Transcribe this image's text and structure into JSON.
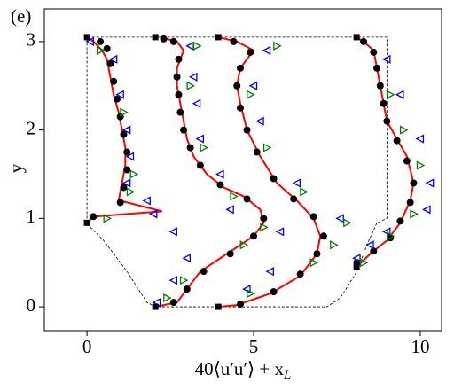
{
  "chart_data": {
    "type": "line",
    "panel_label": "(e)",
    "xlabel": "40⟨u′u′⟩ + x",
    "xlabel_sub": "L",
    "ylabel": "y",
    "xlim": [
      -1.28,
      10.64
    ],
    "ylim": [
      -0.27,
      3.37
    ],
    "xticks": [
      0,
      5,
      10
    ],
    "yticks": [
      0,
      1,
      2,
      3
    ],
    "series": [
      {
        "style": "line",
        "color": "#000000",
        "dashed": true,
        "x": [
          0,
          0,
          9.0,
          9.0,
          8.7,
          8.4,
          8.1,
          7.6,
          7.2,
          2.05,
          1.8,
          1.2,
          0.5,
          0.1,
          0
        ],
        "y": [
          0.95,
          3.05,
          3.05,
          1.0,
          0.95,
          0.7,
          0.4,
          0.1,
          0,
          0,
          0.05,
          0.4,
          0.75,
          0.9,
          0.95
        ]
      },
      {
        "style": "line",
        "color": "#ff0000",
        "x": [
          0,
          0.19,
          2.25,
          1.0,
          0.95,
          1.05,
          1.15,
          1.15,
          1.05,
          0.95,
          0.8,
          0.7,
          0.6,
          0.45,
          0.2,
          0,
          null,
          2.05,
          2.7,
          3.0,
          3.4,
          4.2,
          5.0,
          5.3,
          5.2,
          4.7,
          4.1,
          3.6,
          3.2,
          3.0,
          2.9,
          2.8,
          2.7,
          2.7,
          2.9,
          2.7,
          2.2,
          null,
          3.94,
          4.5,
          5.5,
          6.4,
          6.9,
          7.0,
          6.8,
          6.3,
          5.7,
          5.2,
          4.8,
          4.6,
          4.5,
          4.6,
          5.0,
          4.5,
          3.94,
          null,
          8.09,
          8.5,
          9.0,
          9.4,
          9.7,
          9.8,
          9.6,
          9.3,
          9.0,
          8.9,
          8.8,
          8.7,
          8.6,
          8.3,
          8.09
        ],
        "y": [
          0.95,
          1.02,
          1.08,
          1.2,
          1.2,
          1.4,
          1.6,
          1.8,
          2.0,
          2.2,
          2.4,
          2.6,
          2.8,
          2.9,
          3.0,
          3.05,
          null,
          0,
          0.05,
          0.2,
          0.4,
          0.6,
          0.8,
          0.95,
          1.1,
          1.25,
          1.35,
          1.5,
          1.7,
          1.9,
          2.1,
          2.3,
          2.5,
          2.7,
          2.9,
          3.0,
          3.05,
          null,
          0,
          0.02,
          0.15,
          0.35,
          0.6,
          0.8,
          1.0,
          1.2,
          1.4,
          1.7,
          2.0,
          2.3,
          2.5,
          2.7,
          2.9,
          3.0,
          3.05,
          null,
          0.45,
          0.6,
          0.75,
          0.95,
          1.2,
          1.4,
          1.7,
          1.9,
          2.1,
          2.3,
          2.5,
          2.7,
          2.9,
          3.0,
          3.05
        ]
      },
      {
        "style": "scatter",
        "marker": "circle",
        "color": "#000000",
        "x": [
          0.19,
          1.0,
          1.1,
          1.2,
          1.2,
          1.1,
          1.0,
          0.9,
          0.8,
          0.7,
          0.6,
          0.4,
          2.6,
          3.0,
          3.5,
          4.3,
          5.0,
          5.3,
          4.8,
          4.0,
          3.4,
          3.1,
          2.9,
          2.8,
          2.75,
          2.7,
          2.75,
          2.6,
          2.3,
          4.6,
          5.6,
          6.4,
          6.9,
          7.1,
          6.8,
          6.2,
          5.6,
          5.1,
          4.8,
          4.6,
          4.5,
          4.6,
          4.9,
          4.4,
          8.1,
          8.6,
          9.1,
          9.4,
          9.7,
          9.8,
          9.6,
          9.3,
          9.0,
          8.9,
          8.8,
          8.7,
          8.6,
          8.3
        ],
        "y": [
          1.02,
          1.18,
          1.35,
          1.55,
          1.75,
          1.95,
          2.15,
          2.35,
          2.55,
          2.75,
          2.92,
          3.0,
          0.05,
          0.2,
          0.4,
          0.6,
          0.8,
          1.0,
          1.22,
          1.38,
          1.6,
          1.8,
          2.0,
          2.2,
          2.4,
          2.6,
          2.8,
          3.0,
          3.03,
          0.03,
          0.17,
          0.37,
          0.6,
          0.8,
          1.02,
          1.22,
          1.45,
          1.75,
          2.0,
          2.25,
          2.5,
          2.7,
          2.88,
          3.0,
          0.5,
          0.63,
          0.78,
          0.97,
          1.18,
          1.4,
          1.65,
          1.88,
          2.1,
          2.3,
          2.5,
          2.7,
          2.88,
          3.0
        ]
      },
      {
        "style": "scatter",
        "marker": "triangle-left",
        "color": "#0000ff",
        "x": [
          0.1,
          0.8,
          1.0,
          1.2,
          1.3,
          1.2,
          2.0,
          1.8,
          2.1,
          2.6,
          3.0,
          2.6,
          4.3,
          4.0,
          3.4,
          3.3,
          3.2,
          3.1,
          4.8,
          5.5,
          5.8,
          7.6,
          6.3,
          5.2,
          5.0,
          5.4,
          8.1,
          8.5,
          9.0,
          10.2,
          10.3,
          10.0,
          9.4,
          9.0
        ],
        "y": [
          3.0,
          2.8,
          2.4,
          2.0,
          1.7,
          1.4,
          1.05,
          1.2,
          0.05,
          0.3,
          0.55,
          0.85,
          1.1,
          1.5,
          1.9,
          2.3,
          2.6,
          2.95,
          0.2,
          0.4,
          0.85,
          1.0,
          1.4,
          2.1,
          2.5,
          2.9,
          0.55,
          0.7,
          0.85,
          1.1,
          1.4,
          1.9,
          2.4,
          2.8
        ]
      },
      {
        "style": "scatter",
        "marker": "triangle-right",
        "color": "#008000",
        "x": [
          0.4,
          1.1,
          1.4,
          1.3,
          0.6,
          2.4,
          2.9,
          4.7,
          5.3,
          4.4,
          3.5,
          3.1,
          3.3,
          4.9,
          6.8,
          7.4,
          7.8,
          6.5,
          5.4,
          4.9,
          5.7,
          8.3,
          9.1,
          9.8,
          10.0,
          9.5,
          9.1
        ],
        "y": [
          2.9,
          2.2,
          1.5,
          1.3,
          1.0,
          0.1,
          0.3,
          0.7,
          0.9,
          1.25,
          1.8,
          2.5,
          2.95,
          0.15,
          0.5,
          0.7,
          0.95,
          1.3,
          1.8,
          2.4,
          2.95,
          0.5,
          0.8,
          1.05,
          1.6,
          2.0,
          2.4
        ]
      },
      {
        "style": "scatter",
        "marker": "square",
        "color": "#000000",
        "x": [
          0,
          0,
          2.05,
          2.05,
          3.94,
          3.94,
          8.09,
          8.09
        ],
        "y": [
          0.95,
          3.05,
          0,
          3.05,
          0,
          3.05,
          0.45,
          3.05
        ]
      }
    ]
  }
}
